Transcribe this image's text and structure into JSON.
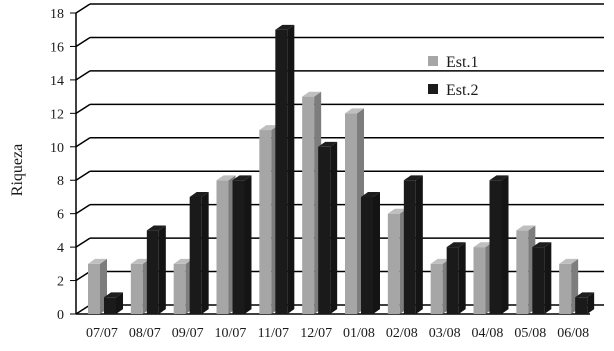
{
  "chart_data": {
    "type": "bar",
    "title": "",
    "xlabel": "",
    "ylabel": "Riqueza",
    "ylim": [
      0,
      18
    ],
    "yticks": [
      0,
      2,
      4,
      6,
      8,
      10,
      12,
      14,
      16,
      18
    ],
    "grid": true,
    "legend_position": "top-right",
    "categories": [
      "07/07",
      "08/07",
      "09/07",
      "10/07",
      "11/07",
      "12/07",
      "01/08",
      "02/08",
      "03/08",
      "04/08",
      "05/08",
      "06/08"
    ],
    "series": [
      {
        "name": "Est.1",
        "color": "#a6a6a6",
        "values": [
          3,
          3,
          3,
          8,
          11,
          13,
          12,
          6,
          3,
          4,
          5,
          3
        ]
      },
      {
        "name": "Est.2",
        "color": "#1a1a1a",
        "values": [
          1,
          5,
          7,
          8,
          17,
          10,
          7,
          8,
          4,
          8,
          4,
          1
        ]
      }
    ]
  }
}
